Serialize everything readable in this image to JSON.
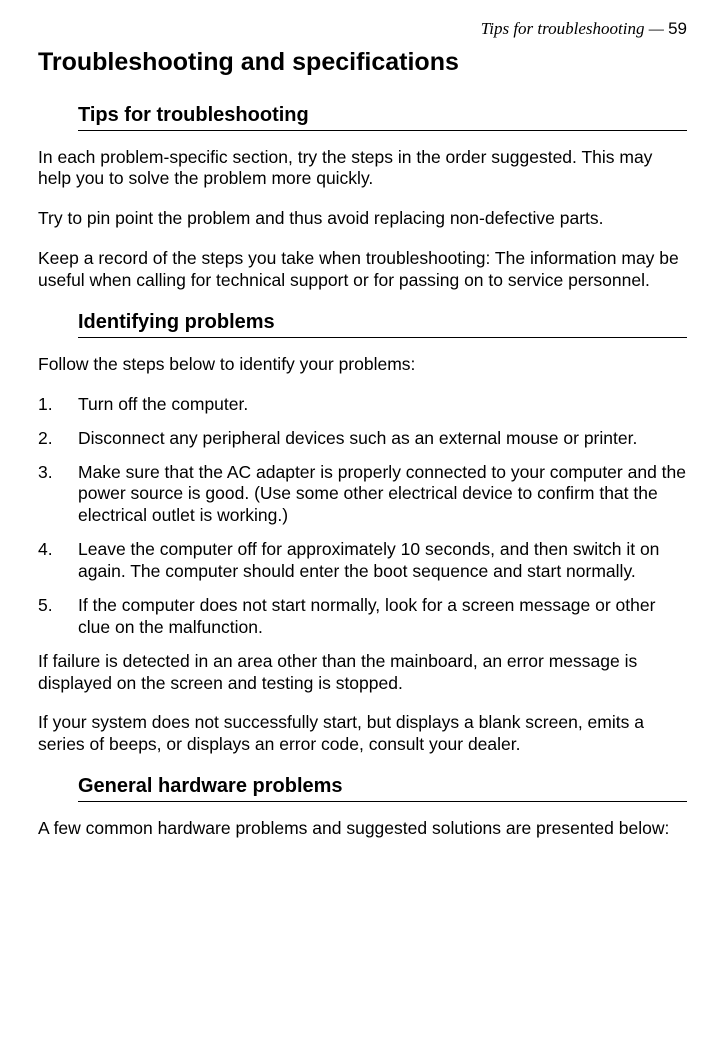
{
  "running_header": {
    "title": "Tips for troubleshooting —",
    "page": "59"
  },
  "h1": "Troubleshooting and specifications",
  "sections": {
    "tips": {
      "heading": "Tips for troubleshooting",
      "p1": "In each problem-specific section, try the steps in the order suggested. This may help you to solve the problem more quickly.",
      "p2": "Try to pin point the problem and thus avoid replacing non-defective parts.",
      "p3": "Keep a record of the steps you take when troubleshooting: The information may be useful when calling for technical support or for passing on to service personnel."
    },
    "identifying": {
      "heading": "Identifying problems",
      "intro": "Follow the steps below to identify your problems:",
      "steps": [
        "Turn off the computer.",
        "Disconnect any peripheral devices such as an external mouse or printer.",
        "Make sure that the AC adapter is properly connected to your computer and the power source is good. (Use some other electrical device to confirm that the electrical outlet is working.)",
        "Leave the computer off for approximately 10 seconds, and then switch it on again. The computer should enter the boot sequence and start normally.",
        "If the computer does not start normally, look for a screen message or other clue on the malfunction."
      ],
      "p_after1": "If failure is detected in an area other than the mainboard, an error message is displayed on the screen and testing is stopped.",
      "p_after2": "If your system does not successfully start, but displays a blank screen, emits a series of beeps, or displays an error code, consult your dealer."
    },
    "general_hw": {
      "heading": "General hardware problems",
      "p1": "A few common hardware problems and suggested solutions are presented below:"
    }
  }
}
